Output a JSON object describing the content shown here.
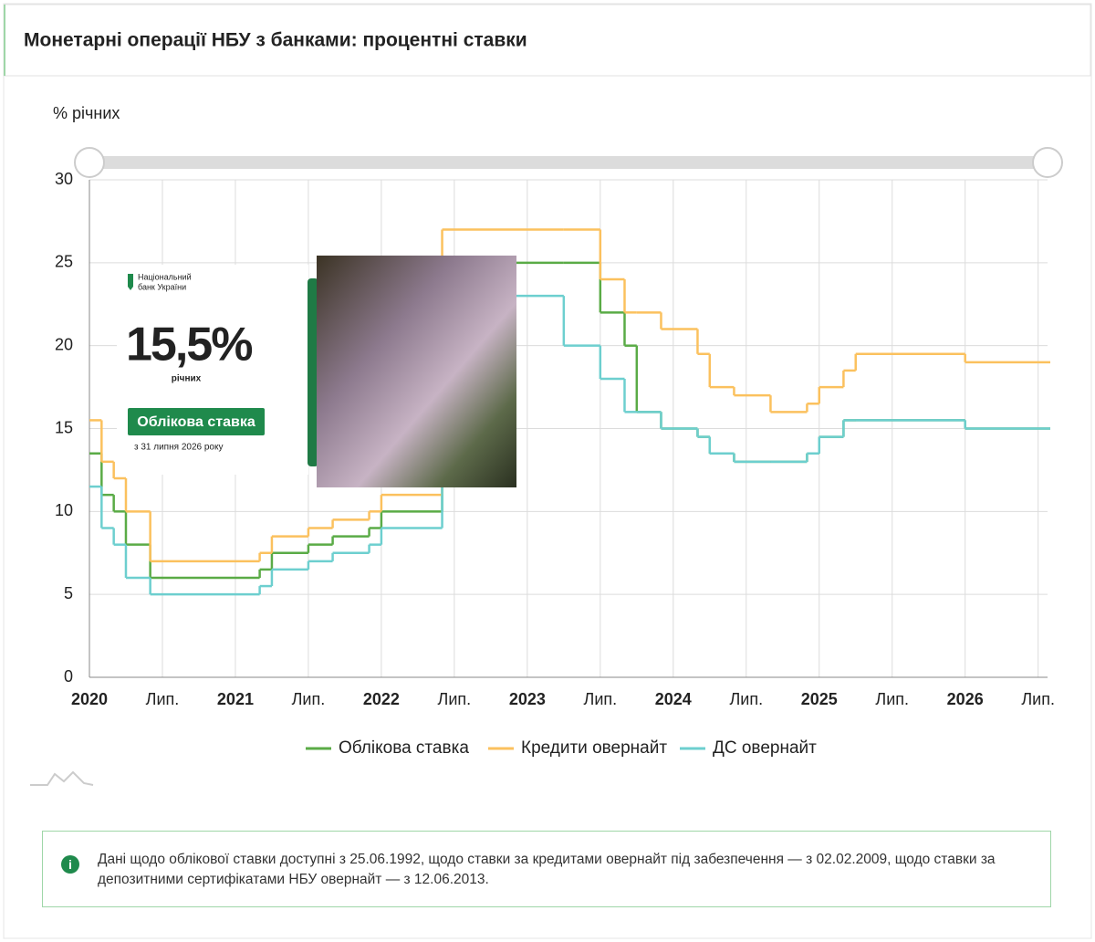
{
  "header": {
    "title": "Монетарні операції НБУ з банками: процентні ставки"
  },
  "chart_data": {
    "type": "line",
    "step": true,
    "y_label": "% річних",
    "x": [
      "2020-01",
      "2020-02",
      "2020-03",
      "2020-04",
      "2020-06",
      "2021-03",
      "2021-04",
      "2021-07",
      "2021-09",
      "2021-12",
      "2022-01",
      "2022-06",
      "2023-04",
      "2023-07",
      "2023-09",
      "2023-10",
      "2023-12",
      "2024-03",
      "2024-04",
      "2024-06",
      "2024-09",
      "2024-12",
      "2025-01",
      "2025-03",
      "2025-04",
      "2026-01"
    ],
    "series": [
      {
        "name": "Облікова ставка",
        "color": "#5aab46",
        "values": [
          13.5,
          11,
          10,
          8,
          6,
          6.5,
          7.5,
          8,
          8.5,
          9,
          10,
          25,
          25,
          22,
          20,
          16,
          15,
          14.5,
          13.5,
          13,
          13,
          13.5,
          14.5,
          15.5,
          15.5,
          15
        ]
      },
      {
        "name": "Кредити овернайт",
        "color": "#fbc15e",
        "values": [
          15.5,
          13,
          12,
          10,
          7,
          7.5,
          8.5,
          9,
          9.5,
          10,
          11,
          27,
          27,
          24,
          22,
          22,
          21,
          19.5,
          17.5,
          17,
          16,
          16.5,
          17.5,
          18.5,
          19.5,
          19
        ]
      },
      {
        "name": "ДС овернайт",
        "color": "#6dcfcf",
        "values": [
          11.5,
          9,
          8,
          6,
          5,
          5.5,
          6.5,
          7,
          7.5,
          8,
          9,
          23,
          20,
          18,
          16,
          16,
          15,
          14.5,
          13.5,
          13,
          13,
          13.5,
          14.5,
          15.5,
          15.5,
          15
        ]
      }
    ],
    "xlim": [
      "2020-01",
      "2026-08"
    ],
    "xticks": [
      {
        "value": "2020-01",
        "label": "2020"
      },
      {
        "value": "2020-07",
        "label": "Лип."
      },
      {
        "value": "2021-01",
        "label": "2021"
      },
      {
        "value": "2021-07",
        "label": "Лип."
      },
      {
        "value": "2022-01",
        "label": "2022"
      },
      {
        "value": "2022-07",
        "label": "Лип."
      },
      {
        "value": "2023-01",
        "label": "2023"
      },
      {
        "value": "2023-07",
        "label": "Лип."
      },
      {
        "value": "2024-01",
        "label": "2024"
      },
      {
        "value": "2024-07",
        "label": "Лип."
      },
      {
        "value": "2025-01",
        "label": "2025"
      },
      {
        "value": "2025-07",
        "label": "Лип."
      },
      {
        "value": "2026-01",
        "label": "2026"
      },
      {
        "value": "2026-07",
        "label": "Лип."
      }
    ],
    "ylim": [
      0,
      30
    ],
    "yticks": [
      0,
      5,
      10,
      15,
      20,
      25,
      30
    ],
    "grid": true
  },
  "promo": {
    "bank": [
      "Національний",
      "банк України"
    ],
    "rate": "15,5%",
    "unit": "річних",
    "badge": "Облікова ставка",
    "since": "з 31 липня 2026 року"
  },
  "note": {
    "text": "Дані щодо облікової ставки доступні з 25.06.1992, щодо ставки за кредитами овернайт під забезпечення — з 02.02.2009, щодо ставки за депозитними сертифікатами НБУ овернайт — з 12.06.2013."
  }
}
